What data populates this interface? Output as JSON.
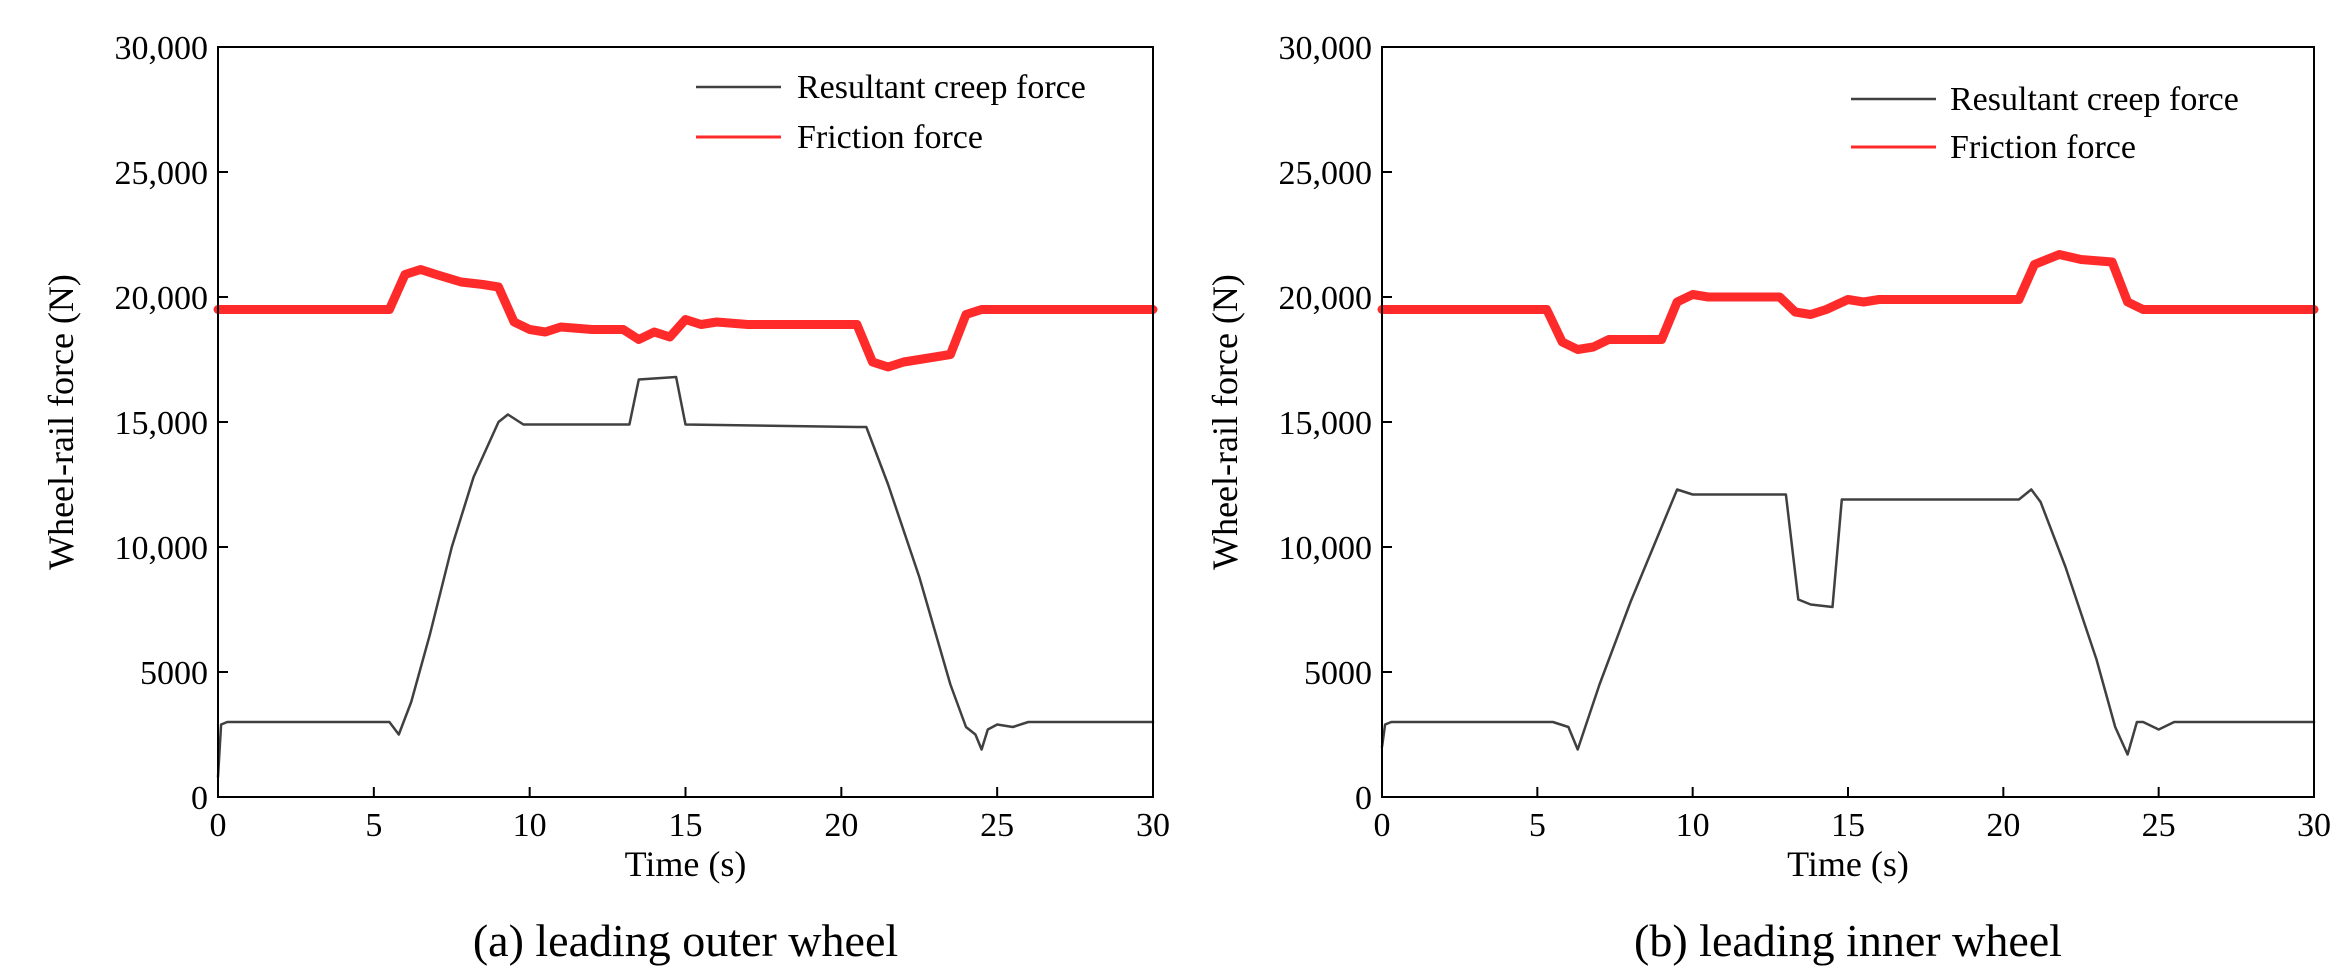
{
  "chart_data": [
    {
      "type": "line",
      "caption": "(a) leading outer wheel",
      "xlabel": "Time (s)",
      "ylabel": "Wheel-rail force (N)",
      "xlim": [
        0,
        30
      ],
      "ylim": [
        0,
        30000
      ],
      "x_ticks": [
        "0",
        "5",
        "10",
        "15",
        "20",
        "25",
        "30"
      ],
      "y_ticks": [
        "0",
        "5000",
        "10,000",
        "15,000",
        "20,000",
        "25,000",
        "30,000"
      ],
      "legend_position": "top-right",
      "series": [
        {
          "name": "Resultant creep force",
          "color": "#404040",
          "x": [
            0,
            0.1,
            0.3,
            5.5,
            5.8,
            6.2,
            6.8,
            7.5,
            8.2,
            9.0,
            9.3,
            9.8,
            10.3,
            13.2,
            13.5,
            14.7,
            15.0,
            20.5,
            20.8,
            21.5,
            22.5,
            23.5,
            24.0,
            24.3,
            24.5,
            24.7,
            25.0,
            25.5,
            26.0,
            30.0
          ],
          "y": [
            800,
            2900,
            3000,
            3000,
            2500,
            3800,
            6500,
            10000,
            12800,
            15000,
            15300,
            14900,
            14900,
            14900,
            16700,
            16800,
            14900,
            14800,
            14800,
            12500,
            8800,
            4500,
            2800,
            2500,
            1900,
            2700,
            2900,
            2800,
            3000,
            3000
          ]
        },
        {
          "name": "Friction force",
          "color": "#ff2a2a",
          "x": [
            0,
            5.5,
            6.0,
            6.5,
            7.0,
            7.8,
            8.5,
            9.0,
            9.5,
            10.0,
            10.5,
            11.0,
            12.0,
            13.0,
            13.5,
            14.0,
            14.5,
            15.0,
            15.5,
            16.0,
            17.0,
            20.0,
            20.5,
            21.0,
            21.5,
            22.0,
            22.5,
            23.5,
            24.0,
            24.5,
            25.0,
            26.0,
            30.0
          ],
          "y": [
            19500,
            19500,
            20900,
            21100,
            20900,
            20600,
            20500,
            20400,
            19000,
            18700,
            18600,
            18800,
            18700,
            18700,
            18300,
            18600,
            18400,
            19100,
            18900,
            19000,
            18900,
            18900,
            18900,
            17400,
            17200,
            17400,
            17500,
            17700,
            19300,
            19500,
            19500,
            19500,
            19500
          ]
        }
      ]
    },
    {
      "type": "line",
      "caption": "(b) leading inner wheel",
      "xlabel": "Time (s)",
      "ylabel": "Wheel-rail force (N)",
      "xlim": [
        0,
        30
      ],
      "ylim": [
        0,
        30000
      ],
      "x_ticks": [
        "0",
        "5",
        "10",
        "15",
        "20",
        "25",
        "30"
      ],
      "y_ticks": [
        "0",
        "5000",
        "10,000",
        "15,000",
        "20,000",
        "25,000",
        "30,000"
      ],
      "legend_position": "top-right",
      "series": [
        {
          "name": "Resultant creep force",
          "color": "#404040",
          "x": [
            0,
            0.1,
            0.3,
            5.5,
            6.0,
            6.3,
            7.0,
            8.0,
            9.0,
            9.5,
            10.0,
            13.0,
            13.4,
            13.8,
            14.5,
            14.8,
            15.0,
            20.5,
            20.9,
            21.2,
            22.0,
            23.0,
            23.6,
            24.0,
            24.3,
            24.5,
            25.0,
            25.5,
            30.0
          ],
          "y": [
            2000,
            2900,
            3000,
            3000,
            2800,
            1900,
            4500,
            7800,
            10800,
            12300,
            12100,
            12100,
            7900,
            7700,
            7600,
            11900,
            11900,
            11900,
            12300,
            11800,
            9200,
            5500,
            2800,
            1700,
            3000,
            3000,
            2700,
            3000,
            3000
          ]
        },
        {
          "name": "Friction force",
          "color": "#ff2a2a",
          "x": [
            0,
            5.3,
            5.8,
            6.3,
            6.8,
            7.3,
            8.0,
            9.0,
            9.5,
            10.0,
            10.5,
            12.8,
            13.3,
            13.8,
            14.3,
            15.0,
            15.5,
            16.0,
            17.0,
            20.5,
            21.0,
            21.8,
            22.5,
            23.5,
            24.0,
            24.5,
            25.0,
            26.0,
            30.0
          ],
          "y": [
            19500,
            19500,
            18200,
            17900,
            18000,
            18300,
            18300,
            18300,
            19800,
            20100,
            20000,
            20000,
            19400,
            19300,
            19500,
            19900,
            19800,
            19900,
            19900,
            19900,
            21300,
            21700,
            21500,
            21400,
            19800,
            19500,
            19500,
            19500,
            19500
          ]
        }
      ]
    }
  ]
}
